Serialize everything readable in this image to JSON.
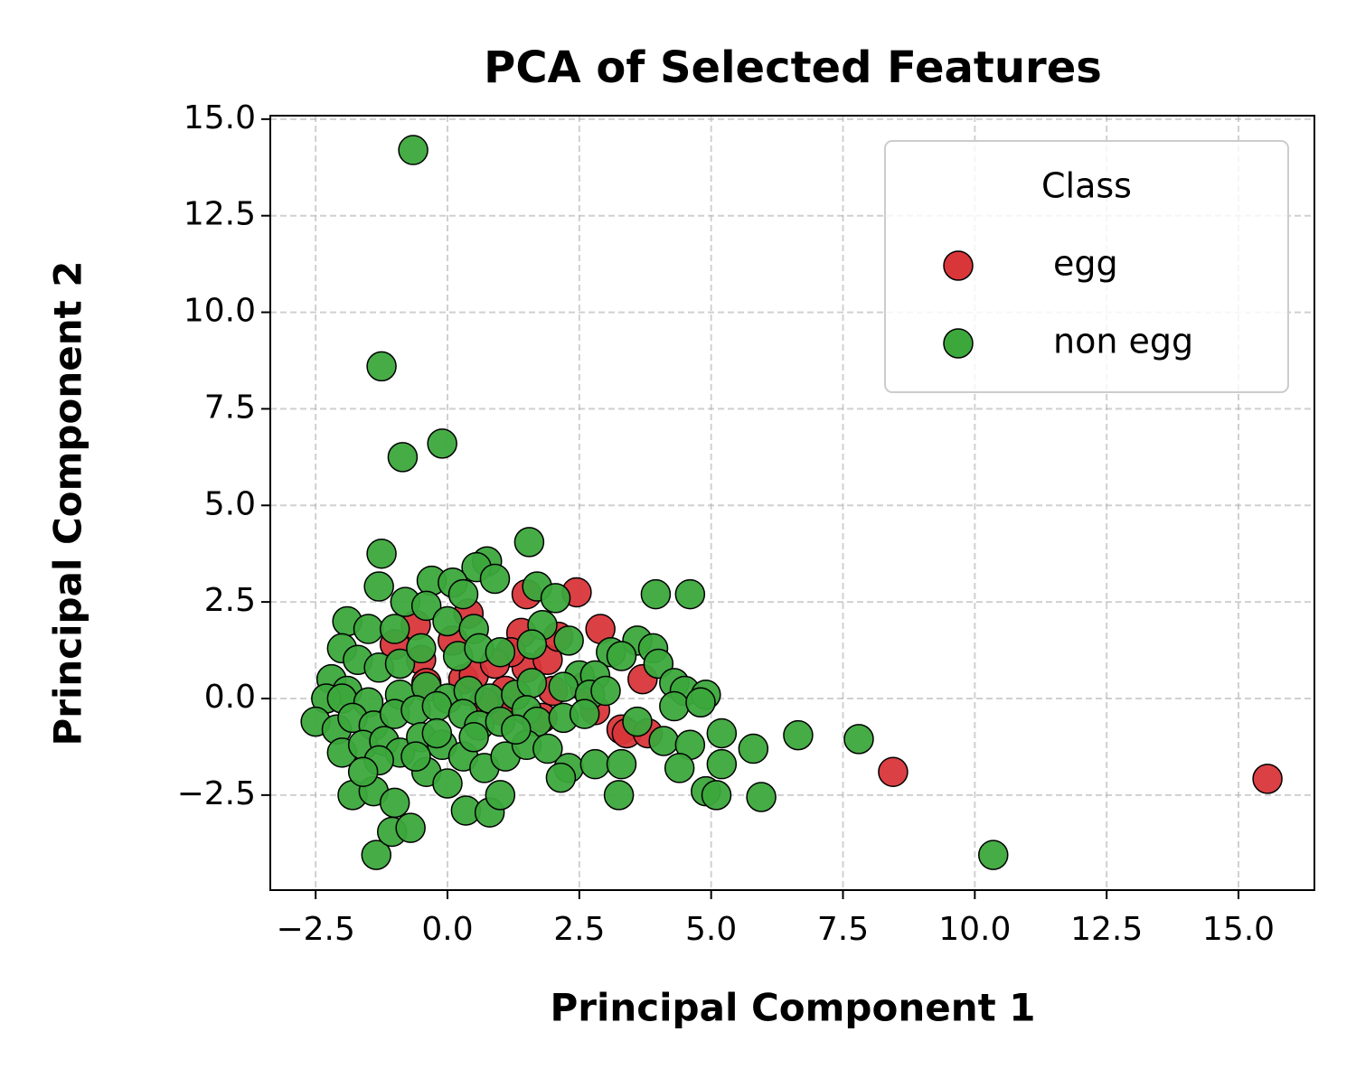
{
  "chart_data": {
    "type": "scatter",
    "title": "PCA of Selected Features",
    "x_label": "Principal Component 1",
    "y_label": "Principal Component 2",
    "legend_title": "Class",
    "legend_loc": "upper right",
    "grid": true,
    "xlim": [
      -3.36,
      16.44
    ],
    "ylim": [
      -4.96,
      15.09
    ],
    "xticks": [
      {
        "value": -2.5,
        "label": "−2.5"
      },
      {
        "value": 0,
        "label": "0.0"
      },
      {
        "value": 2.5,
        "label": "2.5"
      },
      {
        "value": 5,
        "label": "5.0"
      },
      {
        "value": 7.5,
        "label": "7.5"
      },
      {
        "value": 10,
        "label": "10.0"
      },
      {
        "value": 12.5,
        "label": "12.5"
      },
      {
        "value": 15,
        "label": "15.0"
      }
    ],
    "yticks": [
      {
        "value": -2.5,
        "label": "−2.5"
      },
      {
        "value": 0,
        "label": "0.0"
      },
      {
        "value": 2.5,
        "label": "2.5"
      },
      {
        "value": 5,
        "label": "5.0"
      },
      {
        "value": 7.5,
        "label": "7.5"
      },
      {
        "value": 10,
        "label": "10.0"
      },
      {
        "value": 12.5,
        "label": "12.5"
      },
      {
        "value": 15,
        "label": "15.0"
      }
    ],
    "series": [
      {
        "name": "egg",
        "color": "#d9363a",
        "x": [
          15.55,
          8.45,
          2.45,
          2.9,
          1.5,
          -0.6,
          -0.5,
          0.3,
          0.5,
          1.1,
          1.0,
          1.5,
          1.9,
          2.1,
          3.3,
          3.4,
          3.7,
          3.8,
          1.4,
          0.1,
          0.7,
          2.0,
          -0.4,
          1.2,
          2.6,
          0.9,
          -1.0,
          0.4,
          1.8,
          2.8
        ],
        "values": [
          -2.08,
          -1.9,
          2.75,
          1.8,
          2.7,
          1.9,
          1.0,
          0.5,
          0.6,
          0.2,
          -0.3,
          0.8,
          1.0,
          1.6,
          -0.8,
          -0.9,
          0.5,
          -0.9,
          1.7,
          1.5,
          -0.1,
          0.2,
          0.4,
          1.2,
          0.3,
          0.9,
          1.4,
          2.2,
          -0.5,
          -0.3
        ]
      },
      {
        "name": "non egg",
        "color": "#3ca83c",
        "x": [
          -0.65,
          -1.25,
          -0.85,
          -0.1,
          1.55,
          -1.25,
          0.75,
          0.55,
          -0.3,
          0.1,
          -1.3,
          0.9,
          1.7,
          2.05,
          3.95,
          4.6,
          -0.8,
          -0.4,
          0.3,
          -1.9,
          -1.5,
          -1.0,
          0.0,
          0.5,
          1.8,
          2.3,
          3.6,
          3.9,
          3.1,
          3.3,
          4.0,
          -2.0,
          -1.7,
          -1.3,
          -0.9,
          -0.5,
          0.2,
          0.6,
          1.0,
          1.6,
          2.5,
          2.8,
          4.3,
          4.5,
          4.9,
          -2.2,
          -1.9,
          -2.3,
          -2.0,
          -1.5,
          -0.9,
          -0.4,
          0.0,
          0.4,
          0.8,
          1.3,
          1.6,
          2.2,
          2.7,
          3.0,
          4.3,
          4.8,
          -2.5,
          -2.1,
          -1.8,
          -1.4,
          -1.0,
          -0.6,
          -0.2,
          0.3,
          0.6,
          1.0,
          1.5,
          1.7,
          2.2,
          2.6,
          3.6,
          4.1,
          4.6,
          5.2,
          5.8,
          6.65,
          7.8,
          -2.0,
          -1.6,
          -1.2,
          -0.9,
          -0.5,
          -0.1,
          0.3,
          0.7,
          1.1,
          1.5,
          1.9,
          2.3,
          2.8,
          3.3,
          4.4,
          4.9,
          5.2,
          5.1,
          5.95,
          3.25,
          -1.8,
          -1.4,
          -1.0,
          -0.4,
          0.0,
          0.35,
          0.8,
          1.0,
          2.15,
          -1.35,
          -1.05,
          -0.7,
          10.35,
          -1.3,
          -0.2,
          1.3,
          -1.6,
          -0.6,
          0.5
        ],
        "values": [
          14.2,
          8.6,
          6.25,
          6.6,
          4.05,
          3.75,
          3.55,
          3.4,
          3.05,
          3.0,
          2.9,
          3.1,
          2.9,
          2.6,
          2.7,
          2.7,
          2.5,
          2.4,
          2.7,
          2.0,
          1.8,
          1.8,
          2.0,
          1.8,
          1.9,
          1.5,
          1.5,
          1.3,
          1.2,
          1.1,
          0.9,
          1.3,
          1.0,
          0.8,
          0.9,
          1.3,
          1.1,
          1.3,
          1.2,
          1.4,
          0.6,
          0.6,
          0.4,
          0.2,
          0.1,
          0.5,
          0.2,
          0.0,
          0.0,
          -0.1,
          0.1,
          0.3,
          0.0,
          0.2,
          0.0,
          0.1,
          0.4,
          0.3,
          0.1,
          0.2,
          -0.2,
          -0.1,
          -0.6,
          -0.8,
          -0.5,
          -0.7,
          -0.4,
          -0.3,
          -0.2,
          -0.4,
          -0.7,
          -0.6,
          -0.3,
          -0.6,
          -0.5,
          -0.4,
          -0.6,
          -1.1,
          -1.2,
          -0.9,
          -1.3,
          -0.95,
          -1.05,
          -1.4,
          -1.2,
          -1.1,
          -1.4,
          -1.0,
          -1.2,
          -1.5,
          -1.8,
          -1.5,
          -1.2,
          -1.3,
          -1.8,
          -1.7,
          -1.7,
          -1.8,
          -2.4,
          -1.7,
          -2.5,
          -2.55,
          -2.5,
          -2.5,
          -2.4,
          -2.7,
          -1.9,
          -2.2,
          -2.9,
          -2.95,
          -2.5,
          -2.05,
          -4.05,
          -3.45,
          -3.35,
          -4.05,
          -1.6,
          -0.9,
          -0.8,
          -1.9,
          -1.5,
          -1.0
        ]
      }
    ]
  }
}
